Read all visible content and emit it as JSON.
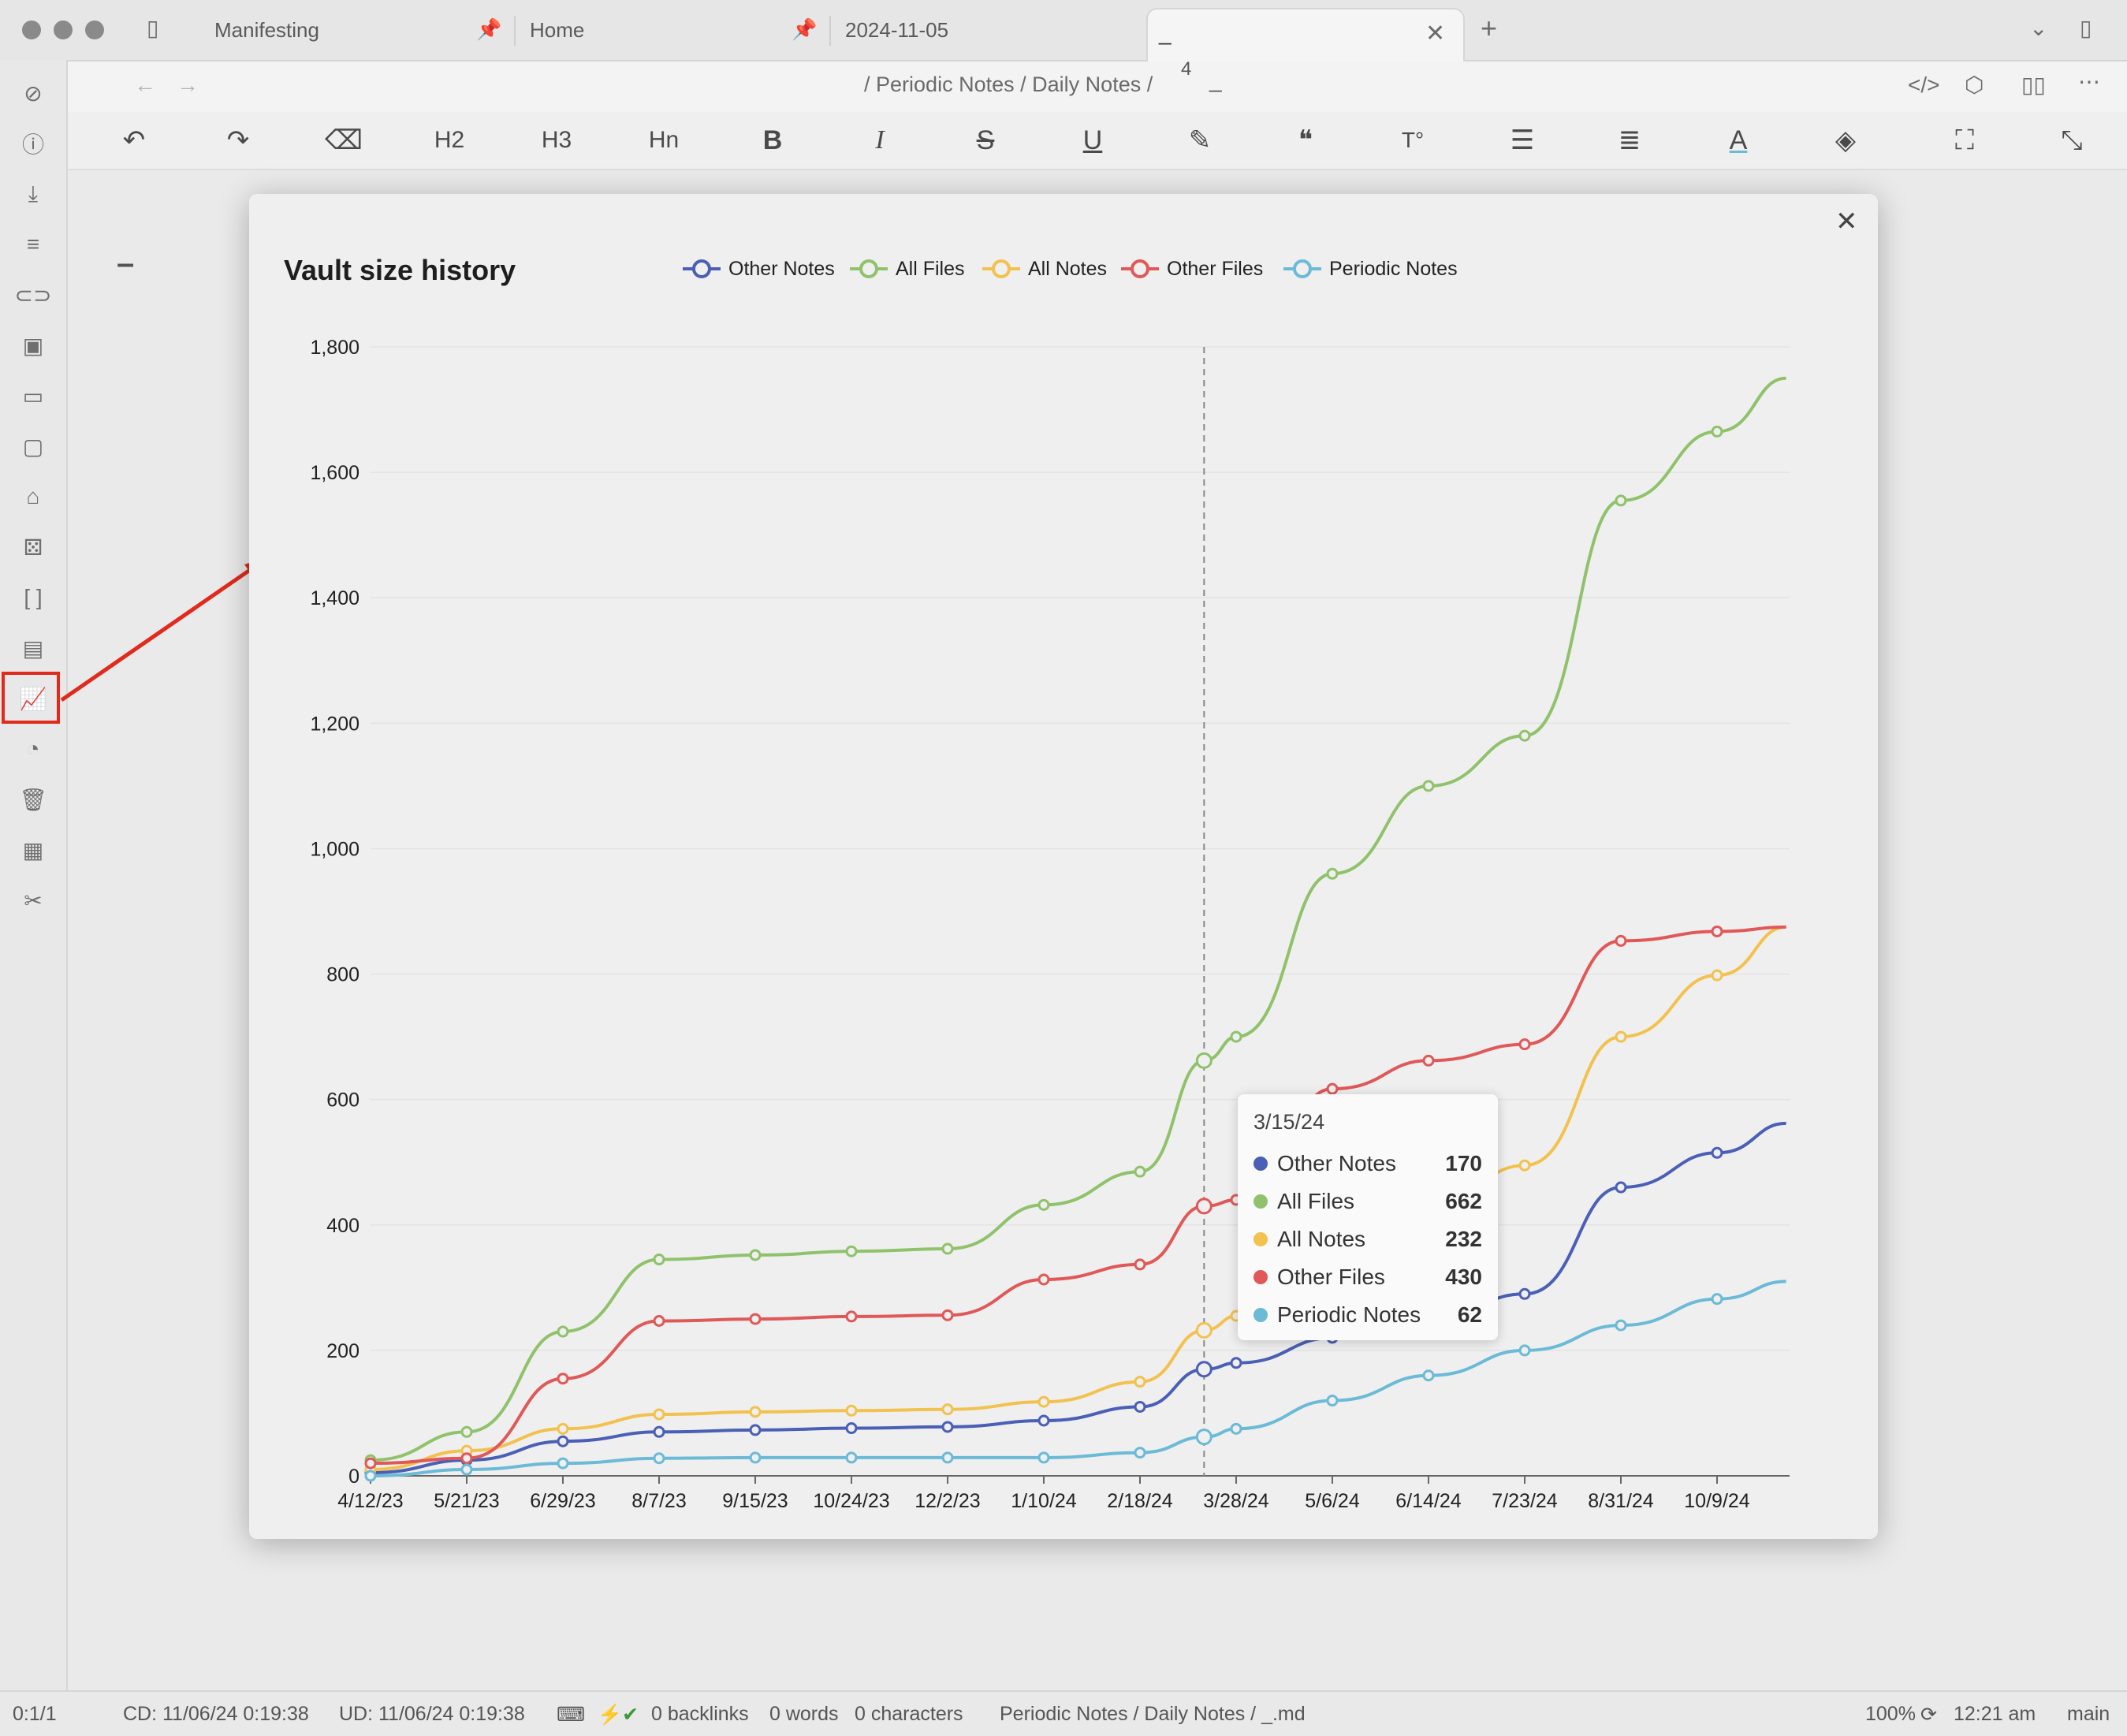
{
  "tabs": [
    {
      "label": "Manifesting"
    },
    {
      "label": "Home"
    },
    {
      "label": "2024-11-05"
    },
    {
      "label": "_"
    }
  ],
  "breadcrumb": {
    "sep": "/",
    "part1": "Periodic Notes",
    "part2": "Daily Notes",
    "part3": "4",
    "part4": "_"
  },
  "toolbar": {
    "h2": "H2",
    "h3": "H3",
    "hn": "Hn",
    "bold": "B",
    "italic": "I",
    "strike": "S",
    "underline": "U"
  },
  "status": {
    "position": "0:1/1",
    "created": "CD: 11/06/24 0:19:38",
    "updated": "UD: 11/06/24 0:19:38",
    "backlinks": "0 backlinks",
    "words": "0 words",
    "characters": "0 characters",
    "path": "Periodic Notes / Daily Notes / _.md",
    "zoom": "100%",
    "time": "12:21 am",
    "branch": "main"
  },
  "editor": {
    "content": "–"
  },
  "tooltip": {
    "date": "3/15/24",
    "rows": [
      {
        "name": "Other Notes",
        "value": "170",
        "color": "#4a5fb5"
      },
      {
        "name": "All Files",
        "value": "662",
        "color": "#8fc26a"
      },
      {
        "name": "All Notes",
        "value": "232",
        "color": "#f2c14e"
      },
      {
        "name": "Other Files",
        "value": "430",
        "color": "#e05858"
      },
      {
        "name": "Periodic Notes",
        "value": "62",
        "color": "#6bbad6"
      }
    ]
  },
  "chart_data": {
    "type": "line",
    "title": "Vault size history",
    "xlabel": "",
    "ylabel": "",
    "ylim": [
      0,
      1800
    ],
    "yticks": [
      0,
      200,
      400,
      600,
      800,
      1000,
      1200,
      1400,
      1600,
      1800
    ],
    "ytick_labels": [
      "0",
      "200",
      "400",
      "600",
      "800",
      "1,000",
      "1,200",
      "1,400",
      "1,600",
      "1,800"
    ],
    "xtick_labels": [
      "4/12/23",
      "5/21/23",
      "6/29/23",
      "8/7/23",
      "9/15/23",
      "10/24/23",
      "12/2/23",
      "1/10/24",
      "2/18/24",
      "3/28/24",
      "5/6/24",
      "6/14/24",
      "7/23/24",
      "8/31/24",
      "10/9/24"
    ],
    "x": [
      "4/12/23",
      "5/21/23",
      "6/29/23",
      "8/7/23",
      "9/15/23",
      "10/24/23",
      "12/2/23",
      "1/10/24",
      "2/18/24",
      "3/15/24",
      "3/28/24",
      "5/6/24",
      "6/14/24",
      "7/23/24",
      "8/31/24",
      "10/9/24",
      "11/6/24"
    ],
    "legend_position": "top",
    "grid": true,
    "crosshair_x": "3/15/24",
    "series": [
      {
        "name": "Other Notes",
        "color": "#4a5fb5",
        "values": [
          5,
          25,
          55,
          70,
          73,
          76,
          78,
          88,
          110,
          170,
          180,
          220,
          250,
          290,
          460,
          515,
          562
        ]
      },
      {
        "name": "All Files",
        "color": "#8fc26a",
        "values": [
          25,
          70,
          230,
          345,
          352,
          358,
          362,
          432,
          485,
          662,
          700,
          960,
          1100,
          1180,
          1555,
          1665,
          1750
        ]
      },
      {
        "name": "All Notes",
        "color": "#f2c14e",
        "values": [
          10,
          40,
          75,
          98,
          102,
          104,
          106,
          118,
          150,
          232,
          255,
          340,
          430,
          495,
          700,
          798,
          875
        ]
      },
      {
        "name": "Other Files",
        "color": "#e05858",
        "values": [
          20,
          28,
          155,
          247,
          250,
          254,
          256,
          313,
          337,
          430,
          440,
          617,
          662,
          688,
          853,
          868,
          875
        ]
      },
      {
        "name": "Periodic Notes",
        "color": "#6bbad6",
        "values": [
          0,
          10,
          20,
          28,
          29,
          29,
          29,
          29,
          37,
          62,
          75,
          120,
          160,
          200,
          240,
          282,
          310
        ]
      }
    ]
  }
}
